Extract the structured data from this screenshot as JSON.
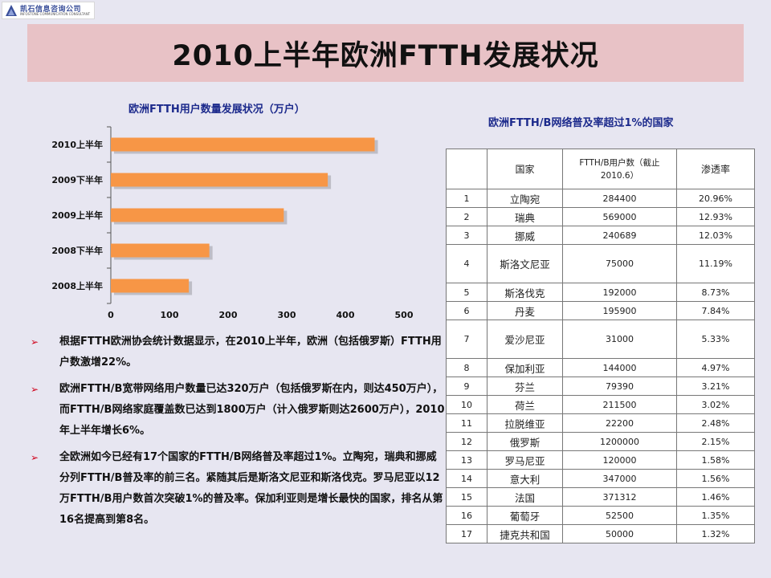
{
  "logo": {
    "name": "凯石信息咨询公司",
    "english": "INFOSTONE COMMUNICATION CONSULTANT"
  },
  "page_title": "2010上半年欧洲FTTH发展状况",
  "chart_data": {
    "type": "bar",
    "orientation": "horizontal",
    "title": "欧洲FTTH用户数量发展状况（万户）",
    "categories": [
      "2010上半年",
      "2009下半年",
      "2009上半年",
      "2008下半年",
      "2008上半年"
    ],
    "values": [
      450,
      370,
      295,
      168,
      133
    ],
    "xlim": [
      0,
      500
    ],
    "x_ticks": [
      "0",
      "100",
      "200",
      "300",
      "400",
      "500"
    ],
    "bar_color": "#f79646",
    "grid": false,
    "legend": "none"
  },
  "bullets": [
    "根据FTTH欧洲协会统计数据显示，在2010上半年，欧洲（包括俄罗斯）FTTH用户数激增22%。",
    "欧洲FTTH/B宽带网络用户数量已达320万户（包括俄罗斯在内，则达450万户），而FTTH/B网络家庭覆盖数已达到1800万户（计入俄罗斯则达2600万户），2010年上半年增长6%。",
    "全欧洲如今已经有17个国家的FTTH/B网络普及率超过1%。立陶宛，瑞典和挪威分列FTTH/B普及率的前三名。紧随其后是斯洛文尼亚和斯洛伐克。罗马尼亚以12万FTTH/B用户数首次突破1%的普及率。保加利亚则是增长最快的国家，排名从第16名提高到第8名。"
  ],
  "table": {
    "title": "欧洲FTTH/B网络普及率超过1%的国家",
    "headers": [
      "",
      "国家",
      "FTTH/B用户数（截止2010.6）",
      "渗透率"
    ],
    "rows": [
      [
        "1",
        "立陶宛",
        "284400",
        "20.96%"
      ],
      [
        "2",
        "瑞典",
        "569000",
        "12.93%"
      ],
      [
        "3",
        "挪威",
        "240689",
        "12.03%"
      ],
      [
        "4",
        "斯洛文尼亚",
        "75000",
        "11.19%"
      ],
      [
        "5",
        "斯洛伐克",
        "192000",
        "8.73%"
      ],
      [
        "6",
        "丹麦",
        "195900",
        "7.84%"
      ],
      [
        "7",
        "爱沙尼亚",
        "31000",
        "5.33%"
      ],
      [
        "8",
        "保加利亚",
        "144000",
        "4.97%"
      ],
      [
        "9",
        "芬兰",
        "79390",
        "3.21%"
      ],
      [
        "10",
        "荷兰",
        "211500",
        "3.02%"
      ],
      [
        "11",
        "拉脱维亚",
        "22200",
        "2.48%"
      ],
      [
        "12",
        "俄罗斯",
        "1200000",
        "2.15%"
      ],
      [
        "13",
        "罗马尼亚",
        "120000",
        "1.58%"
      ],
      [
        "14",
        "意大利",
        "347000",
        "1.56%"
      ],
      [
        "15",
        "法国",
        "371312",
        "1.46%"
      ],
      [
        "16",
        "葡萄牙",
        "52500",
        "1.35%"
      ],
      [
        "17",
        "捷克共和国",
        "50000",
        "1.32%"
      ]
    ]
  },
  "colors": {
    "title_band": "#e8c2c6",
    "background": "#e7e6f1",
    "heading_blue": "#1c2a8c",
    "bullet_red": "#d0021b"
  },
  "icons": {
    "logo": "company-logo-icon",
    "bullet": "arrow-bullet-icon"
  }
}
